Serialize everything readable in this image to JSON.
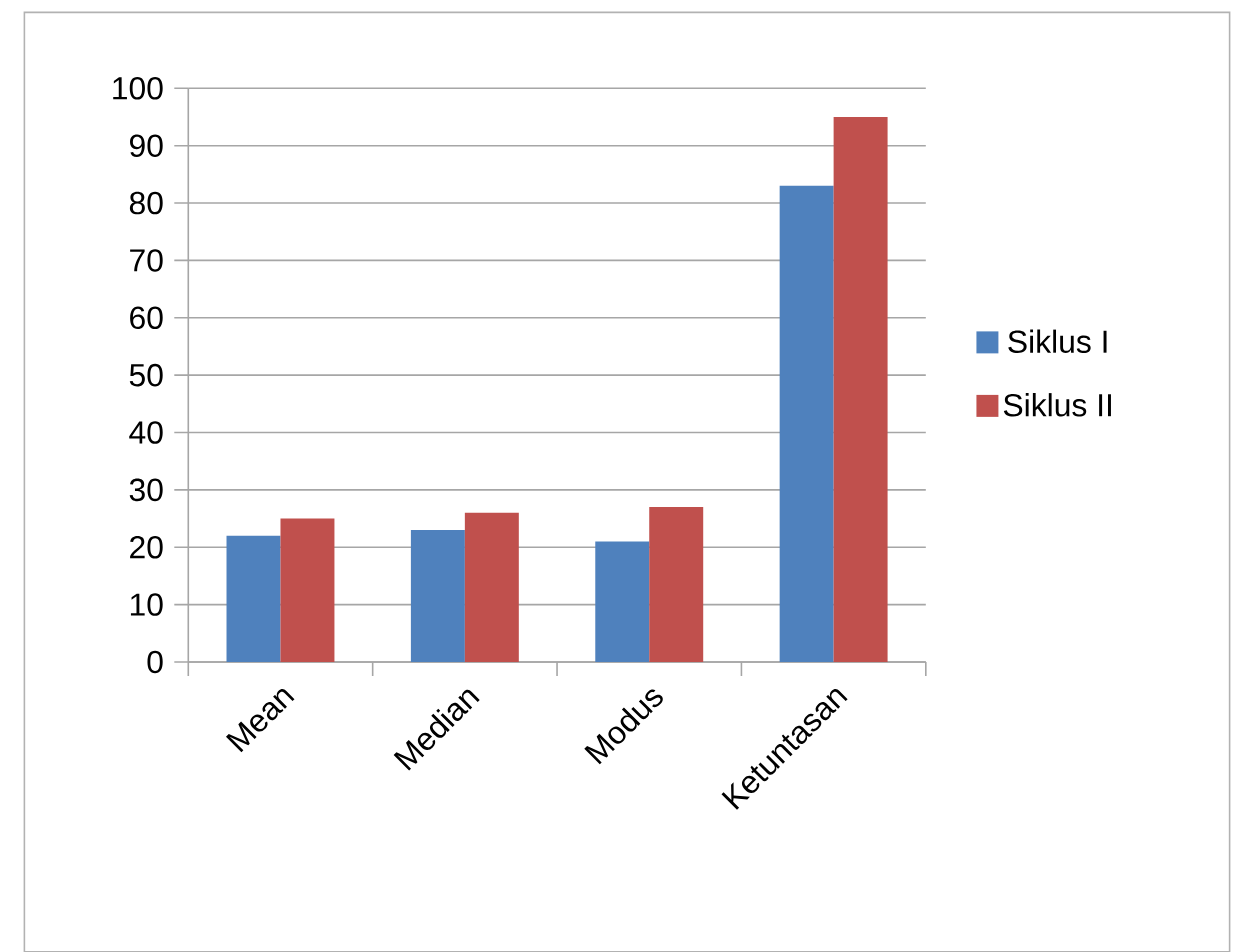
{
  "chart_data": {
    "type": "bar",
    "categories": [
      "Mean",
      "Median",
      "Modus",
      "Ketuntasan"
    ],
    "series": [
      {
        "name": "Siklus I",
        "color": "#4f81bd",
        "values": [
          22,
          23,
          21,
          83
        ]
      },
      {
        "name": "Siklus II",
        "color": "#c0504d",
        "values": [
          25,
          26,
          27,
          95
        ]
      }
    ],
    "ylim": [
      0,
      100
    ],
    "yticks": [
      0,
      10,
      20,
      30,
      40,
      50,
      60,
      70,
      80,
      90,
      100
    ],
    "grid": "y",
    "legend": "right"
  }
}
